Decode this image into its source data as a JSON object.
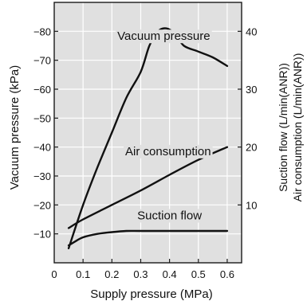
{
  "chart_data": {
    "type": "line",
    "title": "",
    "xlabel": "Supply pressure (MPa)",
    "ylabel_left": "Vacuum pressure (kPa)",
    "ylabel_right_1": "Suction flow (L/min(ANR))",
    "ylabel_right_2": "Air consumption (L/min(ANR))",
    "xlim": [
      0,
      0.65
    ],
    "ylim_left": [
      0,
      -90
    ],
    "ylim_right": [
      0,
      45
    ],
    "grid": true,
    "background": "#e0e0e0",
    "x_ticks": [
      {
        "value": 0,
        "label": "0"
      },
      {
        "value": 0.1,
        "label": "0.1"
      },
      {
        "value": 0.2,
        "label": "0.2"
      },
      {
        "value": 0.3,
        "label": "0.3"
      },
      {
        "value": 0.4,
        "label": "0.4"
      },
      {
        "value": 0.5,
        "label": "0.5"
      },
      {
        "value": 0.6,
        "label": "0.6"
      }
    ],
    "left_ticks": [
      {
        "value": -10,
        "label": "−10"
      },
      {
        "value": -20,
        "label": "−20"
      },
      {
        "value": -30,
        "label": "−30"
      },
      {
        "value": -40,
        "label": "−40"
      },
      {
        "value": -50,
        "label": "−50"
      },
      {
        "value": -60,
        "label": "−60"
      },
      {
        "value": -70,
        "label": "−70"
      },
      {
        "value": -80,
        "label": "−80"
      }
    ],
    "right_ticks": [
      {
        "value": 10,
        "label": "10"
      },
      {
        "value": 20,
        "label": "20"
      },
      {
        "value": 30,
        "label": "30"
      },
      {
        "value": 40,
        "label": "40"
      }
    ],
    "series": [
      {
        "name": "Vacuum pressure",
        "axis": "left",
        "label_x": 0.38,
        "label_y": -77,
        "points": [
          [
            0.05,
            -5
          ],
          [
            0.1,
            -20
          ],
          [
            0.15,
            -33
          ],
          [
            0.2,
            -45
          ],
          [
            0.25,
            -57
          ],
          [
            0.3,
            -66
          ],
          [
            0.33,
            -75
          ],
          [
            0.36,
            -80
          ],
          [
            0.39,
            -81
          ],
          [
            0.42,
            -79
          ],
          [
            0.45,
            -75
          ],
          [
            0.5,
            -73
          ],
          [
            0.55,
            -71
          ],
          [
            0.6,
            -68
          ]
        ]
      },
      {
        "name": "Air consumption",
        "axis": "right",
        "label_x": 0.395,
        "label_y": 18.6,
        "points": [
          [
            0.05,
            6
          ],
          [
            0.1,
            7.5
          ],
          [
            0.2,
            10
          ],
          [
            0.3,
            12.5
          ],
          [
            0.4,
            15.2
          ],
          [
            0.5,
            17.8
          ],
          [
            0.6,
            20
          ]
        ]
      },
      {
        "name": "Suction flow",
        "axis": "right",
        "label_x": 0.4,
        "label_y": 7.5,
        "points": [
          [
            0.05,
            3
          ],
          [
            0.07,
            3.6
          ],
          [
            0.1,
            4.4
          ],
          [
            0.15,
            5
          ],
          [
            0.2,
            5.3
          ],
          [
            0.25,
            5.5
          ],
          [
            0.3,
            5.5
          ],
          [
            0.4,
            5.5
          ],
          [
            0.5,
            5.5
          ],
          [
            0.6,
            5.5
          ]
        ]
      }
    ]
  }
}
